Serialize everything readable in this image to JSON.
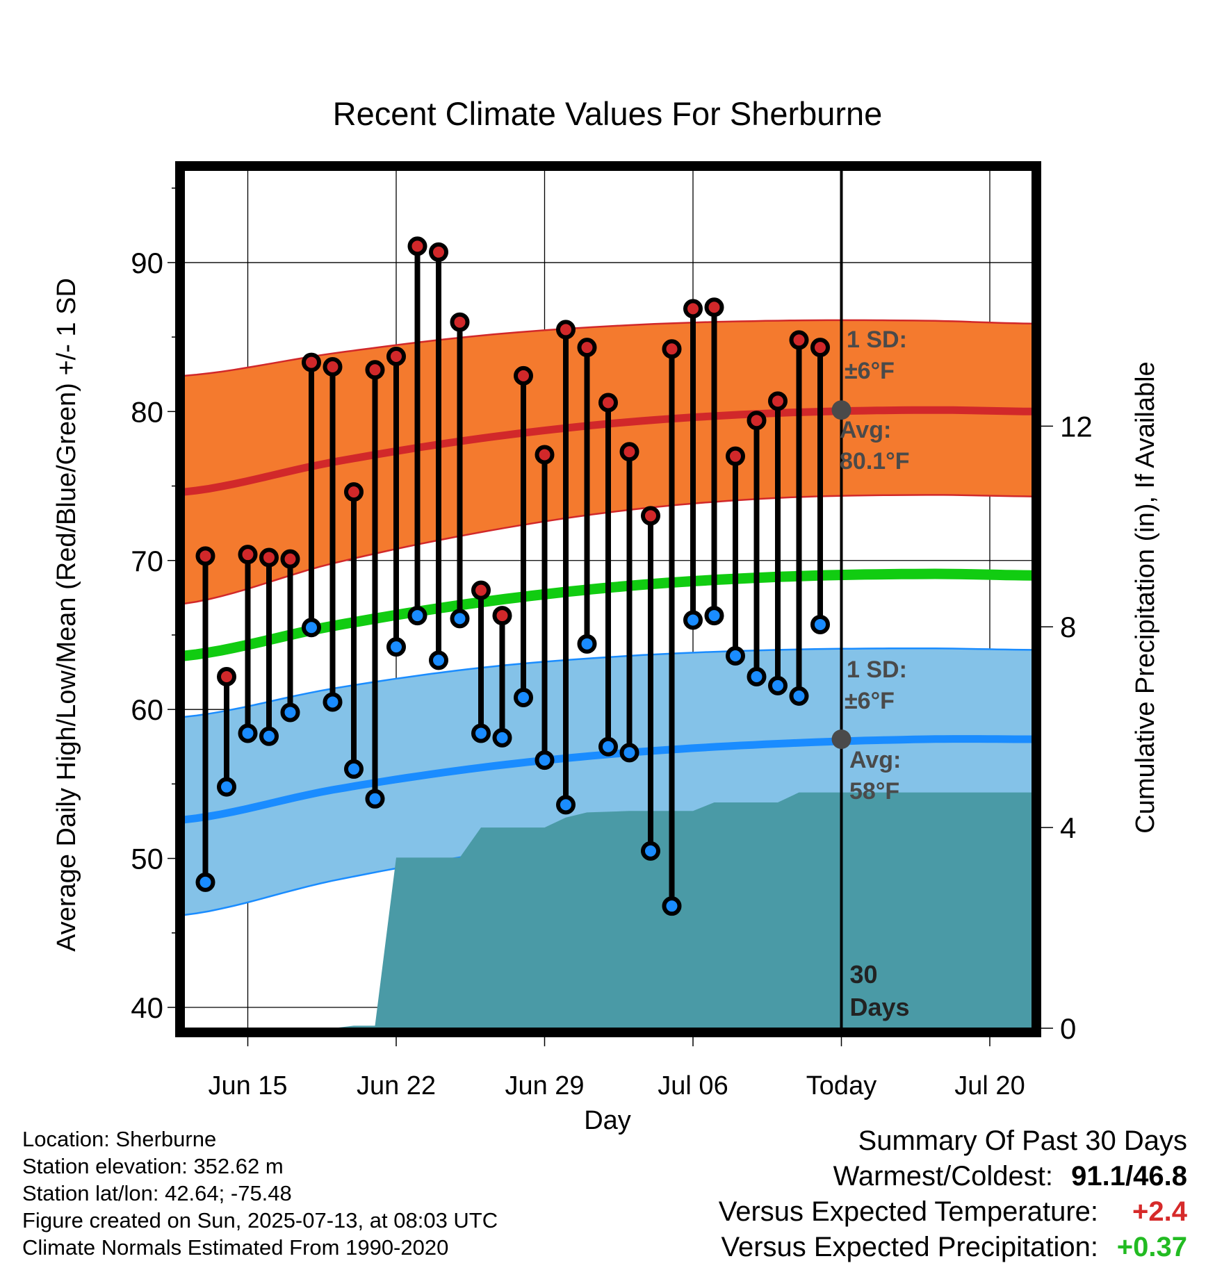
{
  "chart_data": {
    "type": "range-bar-with-bands",
    "title": "Recent Climate Values For Sherburne",
    "xlabel": "Day",
    "ylabel_left": "Average Daily High/Low/Mean (Red/Blue/Green) +/- 1 SD",
    "ylabel_right": "Cumulative Precipitation (in), If Available",
    "x_range": [
      "2025-06-12",
      "2025-07-22"
    ],
    "x_ticks": [
      {
        "date": "2025-06-15",
        "label": "Jun 15"
      },
      {
        "date": "2025-06-22",
        "label": "Jun 22"
      },
      {
        "date": "2025-06-29",
        "label": "Jun 29"
      },
      {
        "date": "2025-07-06",
        "label": "Jul 06"
      },
      {
        "date": "2025-07-13",
        "label": "Today"
      },
      {
        "date": "2025-07-20",
        "label": "Jul 20"
      }
    ],
    "ylim_left": [
      38.6,
      96.2
    ],
    "y_ticks_left": [
      40,
      50,
      60,
      70,
      80,
      90
    ],
    "ylim_right": [
      0,
      17.1
    ],
    "y_ticks_right": [
      0,
      4,
      8,
      12
    ],
    "grid": true,
    "today": "2025-07-13",
    "today_label": "30 Days",
    "daily": {
      "dates": [
        "2025-06-13",
        "2025-06-14",
        "2025-06-15",
        "2025-06-16",
        "2025-06-17",
        "2025-06-18",
        "2025-06-19",
        "2025-06-20",
        "2025-06-21",
        "2025-06-22",
        "2025-06-23",
        "2025-06-24",
        "2025-06-25",
        "2025-06-26",
        "2025-06-27",
        "2025-06-28",
        "2025-06-29",
        "2025-06-30",
        "2025-07-01",
        "2025-07-02",
        "2025-07-03",
        "2025-07-04",
        "2025-07-05",
        "2025-07-06",
        "2025-07-07",
        "2025-07-08",
        "2025-07-09",
        "2025-07-10",
        "2025-07-11",
        "2025-07-12"
      ],
      "high": [
        70.3,
        62.2,
        70.4,
        70.2,
        70.1,
        83.3,
        83.0,
        74.6,
        82.8,
        83.7,
        91.1,
        90.7,
        86.0,
        68.0,
        66.3,
        82.4,
        77.1,
        85.5,
        84.3,
        80.6,
        77.3,
        73.0,
        84.2,
        86.9,
        87.0,
        77.0,
        79.4,
        80.7,
        84.8,
        84.3
      ],
      "low": [
        48.4,
        54.8,
        58.4,
        58.2,
        59.8,
        65.5,
        60.5,
        56.0,
        54.0,
        64.2,
        66.3,
        63.3,
        66.1,
        58.4,
        58.1,
        60.8,
        56.6,
        53.6,
        64.4,
        57.5,
        57.1,
        50.5,
        46.8,
        66.0,
        66.3,
        63.6,
        62.2,
        61.6,
        60.9,
        65.7
      ]
    },
    "normals": {
      "dates": [
        "2025-06-12",
        "2025-06-19",
        "2025-06-26",
        "2025-07-03",
        "2025-07-10",
        "2025-07-17",
        "2025-07-22"
      ],
      "avg_high": [
        74.6,
        76.6,
        78.2,
        79.3,
        79.9,
        80.1,
        80.0
      ],
      "high_sd_upper": [
        82.4,
        83.9,
        85.1,
        85.8,
        86.1,
        86.1,
        85.9
      ],
      "high_sd_lower": [
        67.1,
        69.8,
        71.9,
        73.4,
        74.2,
        74.4,
        74.3
      ],
      "avg_mean": [
        63.6,
        65.6,
        67.2,
        68.3,
        68.9,
        69.1,
        69.0
      ],
      "avg_low": [
        52.6,
        54.6,
        56.1,
        57.1,
        57.7,
        58.0,
        58.0
      ],
      "low_sd_upper": [
        59.5,
        61.4,
        62.8,
        63.6,
        64.0,
        64.1,
        64.0
      ],
      "low_sd_lower": [
        46.2,
        48.5,
        50.3,
        51.6,
        52.3,
        52.6,
        52.6
      ]
    },
    "precip_cumulative": {
      "dates": [
        "2025-06-12",
        "2025-06-19",
        "2025-06-20",
        "2025-06-21",
        "2025-06-22",
        "2025-06-25",
        "2025-06-26",
        "2025-06-29",
        "2025-06-30",
        "2025-07-01",
        "2025-07-03",
        "2025-07-05",
        "2025-07-06",
        "2025-07-07",
        "2025-07-10",
        "2025-07-11",
        "2025-07-22"
      ],
      "values": [
        0.0,
        0.0,
        0.05,
        0.05,
        3.4,
        3.4,
        4.0,
        4.0,
        4.2,
        4.3,
        4.33,
        4.33,
        4.33,
        4.5,
        4.5,
        4.7,
        4.7
      ]
    },
    "annotations": {
      "high_sd_label": "1 SD:",
      "high_sd_value": "±6°F",
      "high_avg_label": "Avg:",
      "high_avg_value": "80.1°F",
      "high_avg_marker": 80.1,
      "low_sd_label": "1 SD:",
      "low_sd_value": "±6°F",
      "low_avg_label": "Avg:",
      "low_avg_value": "58°F",
      "low_avg_marker": 58.0
    },
    "colors": {
      "high_band": "#f47a2e",
      "high_line": "#d1282a",
      "low_band": "#84c2e8",
      "low_line": "#1a8cff",
      "mean_line": "#11cc11",
      "precip": "#4a9aa6",
      "high_dot": "#d1282a",
      "low_dot": "#1a8cff",
      "annotation": "#4a4a4a"
    }
  },
  "footer": {
    "location": "Location: Sherburne",
    "elevation": "Station elevation: 352.62 m",
    "latlon": "Station lat/lon: 42.64; -75.48",
    "created": "Figure created on Sun, 2025-07-13, at 08:03 UTC",
    "normals": "Climate Normals Estimated From 1990-2020"
  },
  "summary": {
    "title": "Summary Of Past 30 Days",
    "warmest_label": "Warmest/Coldest:",
    "warmest_value": "91.1/46.8",
    "temp_label": "Versus Expected Temperature:",
    "temp_value": "+2.4",
    "precip_label": "Versus Expected Precipitation:",
    "precip_value": "+0.37"
  }
}
